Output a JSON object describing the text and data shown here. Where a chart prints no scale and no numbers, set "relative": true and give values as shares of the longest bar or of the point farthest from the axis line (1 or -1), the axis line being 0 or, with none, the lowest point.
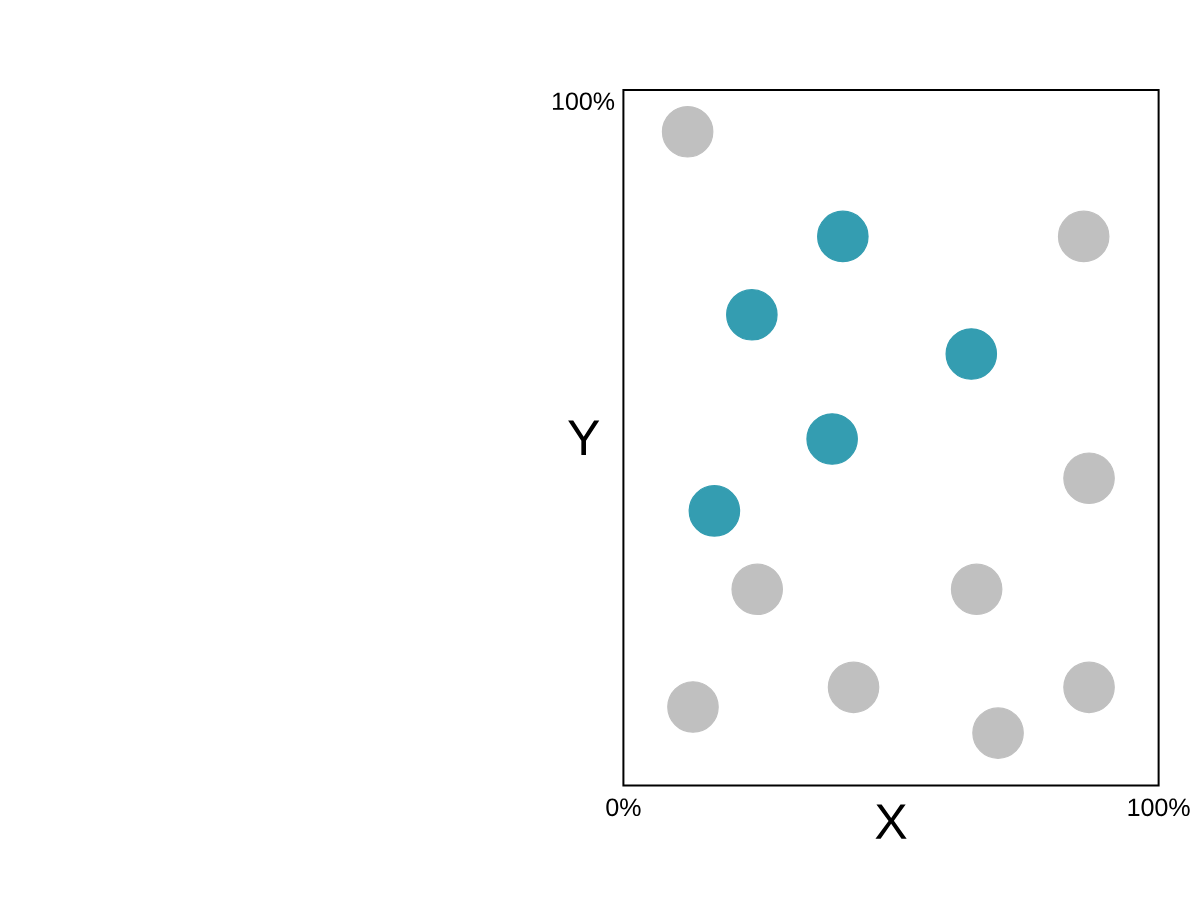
{
  "chart_data": {
    "type": "scatter",
    "xlabel": "X",
    "ylabel": "Y",
    "relative": true,
    "xlim": [
      0,
      100
    ],
    "xticks": [
      {
        "value": 0,
        "label": "0%"
      },
      {
        "value": 100,
        "label": "100%"
      }
    ],
    "annotations": [
      "100%"
    ],
    "marker": "circle",
    "series": [
      {
        "color": "#c0c0c0",
        "x": [
          12,
          86,
          87,
          25,
          66,
          13,
          43,
          70,
          87
        ],
        "values": [
          1,
          0.84,
          0.47,
          0.3,
          0.3,
          0.12,
          0.15,
          0.08,
          0.15
        ]
      },
      {
        "color": "#349db1",
        "x": [
          41,
          24,
          65,
          39,
          17
        ],
        "values": [
          0.84,
          0.72,
          0.66,
          0.53,
          0.42
        ]
      }
    ]
  }
}
